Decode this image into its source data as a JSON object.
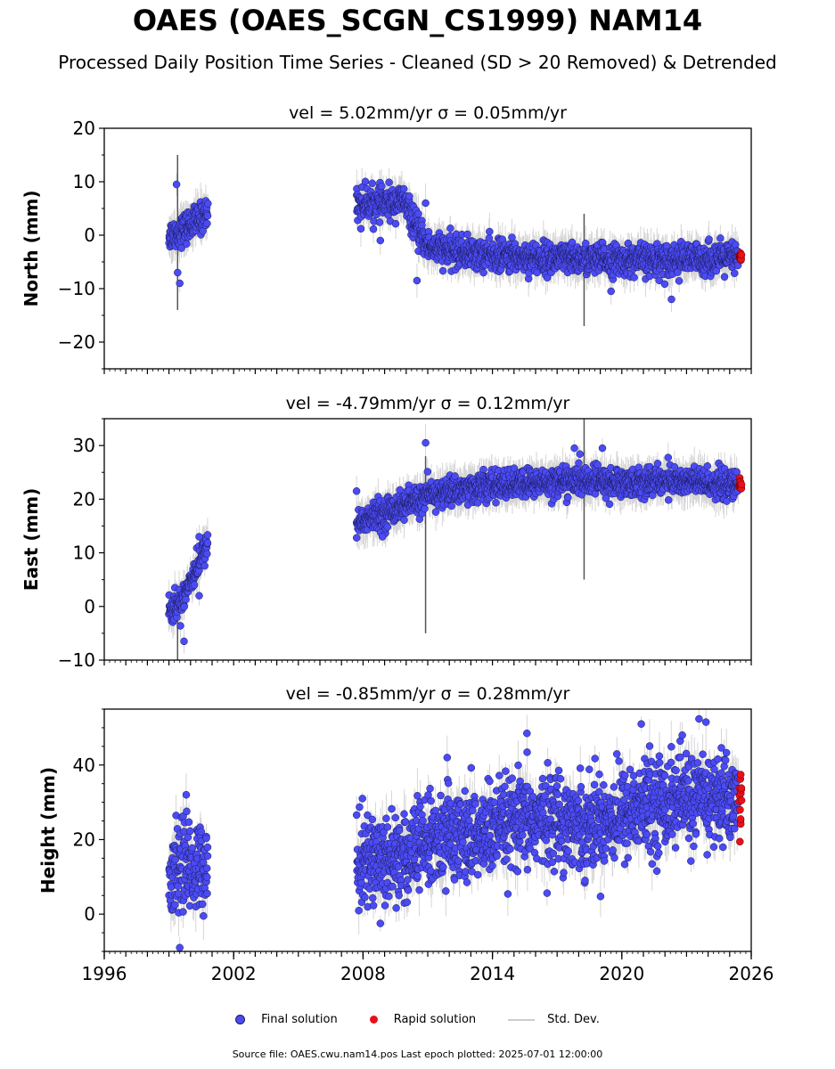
{
  "header": {
    "title": "OAES (OAES_SCGN_CS1999) NAM14",
    "subtitle": "Processed Daily Position Time Series - Cleaned (SD > 20 Removed) & Detrended"
  },
  "legend": {
    "final_label": "Final solution",
    "rapid_label": "Rapid solution",
    "std_label": "Std. Dev."
  },
  "footer": {
    "source": "Source file: OAES.cwu.nam14.pos  Last epoch plotted: 2025-07-01 12:00:00"
  },
  "colors": {
    "final": "#4b4bf5",
    "rapid": "#e8101a",
    "std_dev": "#b4b4b4"
  },
  "chart_data": [
    {
      "type": "scatter",
      "panel": "north",
      "title": "vel = 5.02mm/yr   σ = 0.05mm/yr",
      "ylabel": "North (mm)",
      "xlim": [
        1996,
        2026
      ],
      "ylim": [
        -25,
        20
      ],
      "yticks": [
        -20,
        -10,
        0,
        10,
        20
      ],
      "series": [
        {
          "name": "Final solution",
          "segments": [
            {
              "x": [
                1999.0,
                1999.4,
                1999.8,
                2000.2,
                2000.6,
                2000.8
              ],
              "y": [
                0,
                0.5,
                1.5,
                2.5,
                3.5,
                4.5
              ]
            },
            {
              "x": [
                2007.7,
                2008.5,
                2009.3,
                2009.9,
                2010.5,
                2011.0,
                2012.0,
                2014.0,
                2016.0,
                2018.0,
                2020.0,
                2022.0,
                2024.0,
                2025.4
              ],
              "y": [
                6,
                6,
                6,
                6.5,
                1,
                -2,
                -3,
                -3.8,
                -4.2,
                -4.5,
                -4.6,
                -4.5,
                -4.4,
                -4.3
              ]
            }
          ],
          "scatter": 1.4,
          "outliers": [
            [
              1999.35,
              9.5
            ],
            [
              1999.5,
              -9
            ],
            [
              1999.4,
              -7
            ],
            [
              2010.9,
              6
            ],
            [
              2010.5,
              -8.5
            ],
            [
              2022.3,
              -12
            ],
            [
              2019.5,
              -10.5
            ],
            [
              2008.8,
              -1
            ],
            [
              2007.9,
              1.2
            ]
          ]
        },
        {
          "name": "Rapid solution",
          "segments": [
            {
              "x": [
                2025.45,
                2025.55
              ],
              "y": [
                -4.2,
                -4.1
              ]
            }
          ],
          "scatter": 0.5
        }
      ],
      "std_spikes": [
        [
          2018.25,
          -17,
          4
        ],
        [
          1999.4,
          -14,
          15
        ]
      ]
    },
    {
      "type": "scatter",
      "panel": "east",
      "title": "vel = -4.79mm/yr   σ = 0.12mm/yr",
      "ylabel": "East (mm)",
      "xlim": [
        1996,
        2026
      ],
      "ylim": [
        -10,
        35
      ],
      "yticks": [
        -10,
        0,
        10,
        20,
        30
      ],
      "series": [
        {
          "name": "Final solution",
          "segments": [
            {
              "x": [
                1999.0,
                1999.5,
                2000.0,
                2000.5,
                2000.8
              ],
              "y": [
                -1,
                0.5,
                5,
                9,
                12
              ]
            },
            {
              "x": [
                2007.7,
                2009.0,
                2010.0,
                2011.0,
                2012.0,
                2013.0,
                2014.0,
                2016.0,
                2018.0,
                2020.0,
                2022.0,
                2024.0,
                2025.4
              ],
              "y": [
                15.5,
                17.5,
                19,
                20.5,
                21.5,
                22,
                22.5,
                23,
                23.5,
                23,
                23.5,
                23,
                22.5
              ]
            }
          ],
          "scatter": 1.3,
          "outliers": [
            [
              2010.9,
              30.5
            ],
            [
              1999.7,
              -6.5
            ],
            [
              2007.7,
              21.5
            ],
            [
              2017.8,
              29.5
            ],
            [
              2019.1,
              29.5
            ],
            [
              2000.4,
              2
            ],
            [
              2008.9,
              13
            ],
            [
              2000.4,
              13
            ]
          ]
        },
        {
          "name": "Rapid solution",
          "segments": [
            {
              "x": [
                2025.45,
                2025.55
              ],
              "y": [
                22.5,
                22.5
              ]
            }
          ],
          "scatter": 0.7
        }
      ],
      "std_spikes": [
        [
          2018.25,
          5,
          36
        ],
        [
          2010.9,
          -5,
          28
        ],
        [
          1999.4,
          -10,
          2
        ]
      ]
    },
    {
      "type": "scatter",
      "panel": "height",
      "title": "vel = -0.85mm/yr   σ = 0.28mm/yr",
      "ylabel": "Height (mm)",
      "xlim": [
        1996,
        2026
      ],
      "ylim": [
        -10,
        55
      ],
      "yticks": [
        0,
        20,
        40
      ],
      "xticks": [
        1996,
        2002,
        2008,
        2014,
        2020,
        2026
      ],
      "series": [
        {
          "name": "Final solution",
          "segments": [
            {
              "x": [
                1999.0,
                1999.5,
                2000.0,
                2000.5,
                2000.8
              ],
              "y": [
                8,
                14,
                12,
                13,
                14
              ]
            },
            {
              "x": [
                2007.7,
                2009.0,
                2010.0,
                2011.0,
                2012.0,
                2013.0,
                2014.0,
                2015.0,
                2016.0,
                2017.0,
                2018.0,
                2019.0,
                2020.0,
                2021.0,
                2022.0,
                2023.0,
                2024.0,
                2025.4
              ],
              "y": [
                15,
                15,
                16,
                19,
                21,
                21,
                22,
                24,
                25,
                26,
                24,
                25,
                27,
                29,
                30,
                31,
                31,
                31
              ]
            }
          ],
          "scatter": 6,
          "outliers": [
            [
              2015.6,
              48.5
            ],
            [
              2020.9,
              51
            ],
            [
              2023.9,
              51.5
            ],
            [
              2022.8,
              48
            ],
            [
              2011.9,
              42
            ],
            [
              1999.8,
              32
            ],
            [
              1999.5,
              -9
            ],
            [
              2008.8,
              -2.5
            ]
          ]
        },
        {
          "name": "Rapid solution",
          "segments": [
            {
              "x": [
                2025.45,
                2025.55
              ],
              "y": [
                31,
                31
              ]
            }
          ],
          "scatter": 5
        }
      ],
      "std_spikes": []
    }
  ]
}
